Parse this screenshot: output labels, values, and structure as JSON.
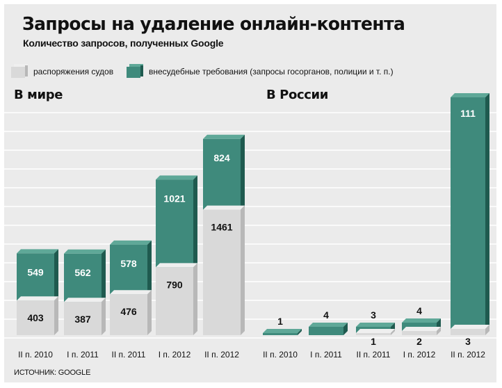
{
  "title": "Запросы на удаление онлайн-контента",
  "subtitle": "Количество запросов, полученных Google",
  "legend": [
    {
      "label": "распоряжения судов",
      "color": "#d9d9d9"
    },
    {
      "label": "внесудебные требования (запросы госорганов, полиции и т. п.)",
      "color": "#3f8a7c"
    }
  ],
  "source": "ИСТОЧНИК: GOOGLE",
  "colors": {
    "court_front": "#d9d9d9",
    "court_top": "#efefef",
    "court_side": "#b8b8b8",
    "gov_front": "#3f8a7c",
    "gov_top": "#5fa898",
    "gov_side": "#1f5a4f",
    "frame": "#ebebeb",
    "grid": "#ffffff"
  },
  "chart_data": [
    {
      "type": "bar",
      "title": "В мире",
      "stacked": true,
      "categories": [
        "II п. 2010",
        "I п. 2011",
        "II п. 2011",
        "I п. 2012",
        "II п. 2012"
      ],
      "series": [
        {
          "name": "распоряжения судов",
          "values": [
            403,
            387,
            476,
            790,
            1461
          ]
        },
        {
          "name": "внесудебные требования (запросы госорганов, полиции и т. п.)",
          "values": [
            549,
            562,
            578,
            1021,
            824
          ]
        }
      ],
      "grid": true
    },
    {
      "type": "bar",
      "title": "В России",
      "stacked": true,
      "categories": [
        "II п. 2010",
        "I п. 2011",
        "II п. 2011",
        "I п. 2012",
        "II п. 2012"
      ],
      "series": [
        {
          "name": "распоряжения судов",
          "values": [
            0,
            0,
            1,
            2,
            3
          ]
        },
        {
          "name": "внесудебные требования (запросы госорганов, полиции и т. п.)",
          "values": [
            1,
            4,
            3,
            4,
            111
          ]
        }
      ],
      "grid": true
    }
  ]
}
